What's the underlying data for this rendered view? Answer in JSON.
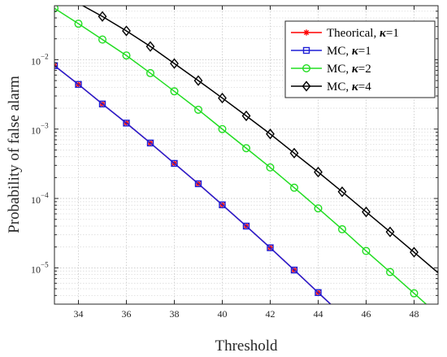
{
  "chart_data": {
    "type": "line",
    "title": "",
    "xlabel": "Threshold",
    "ylabel": "Probability of false alarm",
    "xlim": [
      33,
      49
    ],
    "ylim": [
      3e-06,
      0.06
    ],
    "yscale": "log",
    "xticks": [
      34,
      36,
      38,
      40,
      42,
      44,
      46,
      48
    ],
    "yticks": [
      {
        "value": 1e-05,
        "base": "10",
        "exp": "−5"
      },
      {
        "value": 0.0001,
        "base": "10",
        "exp": "−4"
      },
      {
        "value": 0.001,
        "base": "10",
        "exp": "−3"
      },
      {
        "value": 0.01,
        "base": "10",
        "exp": "−2"
      }
    ],
    "grid": true,
    "legend_position": "top-right",
    "series": [
      {
        "name": "Theorical, κ=1",
        "legend_prefix": "Theorical, ",
        "legend_kappa": "κ",
        "legend_suffix": "=1",
        "color": "#ff0000",
        "marker": "star",
        "x": [
          33,
          34,
          35,
          36,
          37,
          38,
          39,
          40,
          41,
          42,
          43,
          44,
          45
        ],
        "y": [
          0.0082,
          0.0044,
          0.0023,
          0.00122,
          0.00063,
          0.00032,
          0.000163,
          8.1e-05,
          4e-05,
          1.95e-05,
          9.3e-06,
          4.4e-06,
          2.1e-06
        ],
        "markers_at": [
          33,
          34,
          35,
          36,
          37,
          38,
          39,
          40,
          41,
          42,
          43,
          44
        ]
      },
      {
        "name": "MC, κ=1",
        "legend_prefix": "MC,  ",
        "legend_kappa": "κ",
        "legend_suffix": "=1",
        "color": "#1f1fd6",
        "marker": "square",
        "x": [
          33,
          34,
          35,
          36,
          37,
          38,
          39,
          40,
          41,
          42,
          43,
          44,
          45
        ],
        "y": [
          0.0082,
          0.0044,
          0.0023,
          0.00122,
          0.00063,
          0.00032,
          0.000163,
          8.1e-05,
          4e-05,
          1.95e-05,
          9.3e-06,
          4.4e-06,
          2.1e-06
        ],
        "markers_at": [
          33,
          34,
          35,
          36,
          37,
          38,
          39,
          40,
          41,
          42,
          43,
          44
        ]
      },
      {
        "name": "MC, κ=2",
        "legend_prefix": "MC,  ",
        "legend_kappa": "κ",
        "legend_suffix": "=2",
        "color": "#22dd22",
        "marker": "circle",
        "x": [
          33,
          34,
          35,
          36,
          37,
          38,
          39,
          40,
          41,
          42,
          43,
          44,
          45,
          46,
          47,
          48,
          49
        ],
        "y": [
          0.055,
          0.033,
          0.0195,
          0.0115,
          0.0064,
          0.0035,
          0.0019,
          0.001,
          0.00053,
          0.00028,
          0.000143,
          7.2e-05,
          3.6e-05,
          1.75e-05,
          8.7e-06,
          4.3e-06,
          2.1e-06
        ],
        "markers_at": [
          33,
          34,
          35,
          36,
          37,
          38,
          39,
          40,
          41,
          42,
          43,
          44,
          45,
          46,
          47,
          48
        ]
      },
      {
        "name": "MC, κ=4",
        "legend_prefix": "MC,  ",
        "legend_kappa": "κ",
        "legend_suffix": "=4",
        "color": "#000000",
        "marker": "diamond",
        "x": [
          33,
          34,
          35,
          36,
          37,
          38,
          39,
          40,
          41,
          42,
          43,
          44,
          45,
          46,
          47,
          48,
          49
        ],
        "y": [
          0.09,
          0.065,
          0.042,
          0.026,
          0.0155,
          0.0088,
          0.005,
          0.0028,
          0.00155,
          0.00085,
          0.00045,
          0.00024,
          0.000125,
          6.4e-05,
          3.3e-05,
          1.68e-05,
          8.5e-06
        ],
        "markers_at": [
          35,
          36,
          37,
          38,
          39,
          40,
          41,
          42,
          43,
          44,
          45,
          46,
          47,
          48
        ]
      }
    ]
  }
}
